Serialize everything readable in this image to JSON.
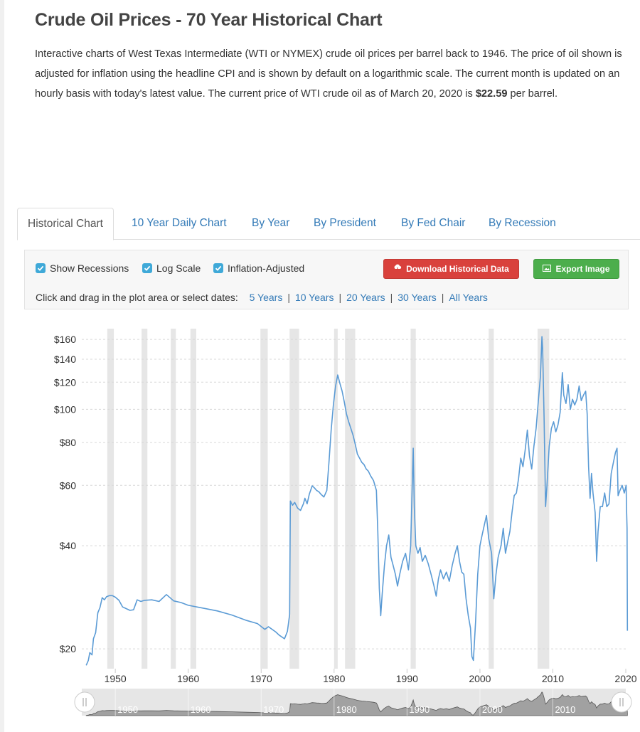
{
  "page": {
    "title": "Crude Oil Prices - 70 Year Historical Chart",
    "intro": "Interactive charts of West Texas Intermediate (WTI or NYMEX) crude oil prices per barrel back to 1946. The price of oil shown is adjusted for inflation using the headline CPI and is shown by default on a logarithmic scale. The current month is updated on an hourly basis with today's latest value. The current price of WTI crude oil as of March 20, 2020 is",
    "price": "$22.59",
    "price_suffix": " per barrel."
  },
  "tabs": [
    {
      "label": "Historical Chart",
      "active": true
    },
    {
      "label": "10 Year Daily Chart"
    },
    {
      "label": "By Year"
    },
    {
      "label": "By President"
    },
    {
      "label": "By Fed Chair"
    },
    {
      "label": "By Recession"
    }
  ],
  "controls": {
    "checkboxes": [
      {
        "label": "Show Recessions",
        "checked": true
      },
      {
        "label": "Log Scale",
        "checked": true
      },
      {
        "label": "Inflation-Adjusted",
        "checked": true
      }
    ],
    "download_label": "Download Historical Data",
    "export_label": "Export Image",
    "dates_prompt": "Click and drag in the plot area or select dates:",
    "date_ranges": [
      "5 Years",
      "10 Years",
      "20 Years",
      "30 Years",
      "All Years"
    ],
    "colors": {
      "download": "#d9413c",
      "export": "#4cae4c",
      "checkbox": "#3fa9d8"
    }
  },
  "chart_data": {
    "type": "line",
    "log_scale": true,
    "line_color": "#5b9bd5",
    "recession_color": "#e6e6e6",
    "x_range": [
      1945.4,
      2020.0
    ],
    "ylim": [
      17.5,
      172
    ],
    "x_ticks": [
      "1950",
      "1960",
      "1970",
      "1980",
      "1990",
      "2000",
      "2010",
      "2020"
    ],
    "y_ticks": [
      {
        "value": 20,
        "label": "$20"
      },
      {
        "value": 40,
        "label": "$40"
      },
      {
        "value": 60,
        "label": "$60"
      },
      {
        "value": 80,
        "label": "$80"
      },
      {
        "value": 100,
        "label": "$100"
      },
      {
        "value": 120,
        "label": "$120"
      },
      {
        "value": 140,
        "label": "$140"
      },
      {
        "value": 160,
        "label": "$160"
      }
    ],
    "recessions": [
      [
        1948.9,
        1949.8
      ],
      [
        1953.6,
        1954.4
      ],
      [
        1957.6,
        1958.3
      ],
      [
        1960.3,
        1961.1
      ],
      [
        1969.9,
        1970.9
      ],
      [
        1973.9,
        1975.2
      ],
      [
        1980.0,
        1980.5
      ],
      [
        1981.5,
        1982.9
      ],
      [
        1990.5,
        1991.2
      ],
      [
        2001.2,
        2001.9
      ],
      [
        2007.9,
        2009.5
      ]
    ],
    "series": [
      {
        "points": [
          [
            1946.0,
            17.9
          ],
          [
            1946.3,
            18.5
          ],
          [
            1946.5,
            19.5
          ],
          [
            1946.8,
            19.2
          ],
          [
            1947.0,
            21.4
          ],
          [
            1947.3,
            22.3
          ],
          [
            1947.6,
            25.5
          ],
          [
            1947.9,
            26.4
          ],
          [
            1948.2,
            28.2
          ],
          [
            1948.5,
            27.8
          ],
          [
            1948.8,
            28.4
          ],
          [
            1949.2,
            28.6
          ],
          [
            1949.6,
            28.6
          ],
          [
            1950.0,
            28.3
          ],
          [
            1950.5,
            27.7
          ],
          [
            1951.0,
            26.5
          ],
          [
            1951.5,
            26.2
          ],
          [
            1952.0,
            25.9
          ],
          [
            1952.5,
            26.0
          ],
          [
            1953.0,
            27.8
          ],
          [
            1953.5,
            27.5
          ],
          [
            1954.0,
            27.7
          ],
          [
            1955.0,
            27.8
          ],
          [
            1956.0,
            27.5
          ],
          [
            1957.0,
            28.8
          ],
          [
            1957.5,
            28.2
          ],
          [
            1958.0,
            27.6
          ],
          [
            1959.0,
            27.3
          ],
          [
            1960.0,
            26.8
          ],
          [
            1962.0,
            26.3
          ],
          [
            1964.0,
            25.8
          ],
          [
            1966.0,
            25.1
          ],
          [
            1968.0,
            24.2
          ],
          [
            1969.5,
            23.7
          ],
          [
            1970.5,
            22.8
          ],
          [
            1971.0,
            23.2
          ],
          [
            1972.0,
            22.4
          ],
          [
            1972.5,
            21.9
          ],
          [
            1973.2,
            21.4
          ],
          [
            1973.6,
            22.5
          ],
          [
            1973.9,
            25.2
          ],
          [
            1974.0,
            54.0
          ],
          [
            1974.3,
            52.5
          ],
          [
            1974.6,
            53.5
          ],
          [
            1975.0,
            51.5
          ],
          [
            1975.4,
            50.7
          ],
          [
            1975.8,
            53.0
          ],
          [
            1976.0,
            55.0
          ],
          [
            1976.3,
            53.0
          ],
          [
            1976.6,
            56.5
          ],
          [
            1977.0,
            59.8
          ],
          [
            1977.3,
            59.0
          ],
          [
            1977.6,
            58.0
          ],
          [
            1977.9,
            57.5
          ],
          [
            1978.2,
            56.5
          ],
          [
            1978.6,
            55.5
          ],
          [
            1979.0,
            58.0
          ],
          [
            1979.3,
            70.0
          ],
          [
            1979.6,
            87.0
          ],
          [
            1979.9,
            103.0
          ],
          [
            1980.2,
            117.0
          ],
          [
            1980.5,
            126.0
          ],
          [
            1980.8,
            119.0
          ],
          [
            1981.1,
            113.0
          ],
          [
            1981.4,
            105.0
          ],
          [
            1981.7,
            97.0
          ],
          [
            1982.0,
            92.0
          ],
          [
            1982.3,
            88.0
          ],
          [
            1982.6,
            84.0
          ],
          [
            1982.9,
            79.0
          ],
          [
            1983.2,
            74.0
          ],
          [
            1983.5,
            72.0
          ],
          [
            1983.8,
            70.0
          ],
          [
            1984.1,
            69.0
          ],
          [
            1984.4,
            67.0
          ],
          [
            1984.7,
            66.0
          ],
          [
            1985.0,
            64.0
          ],
          [
            1985.4,
            62.0
          ],
          [
            1985.8,
            58.0
          ],
          [
            1986.0,
            44.0
          ],
          [
            1986.2,
            30.0
          ],
          [
            1986.4,
            25.0
          ],
          [
            1986.6,
            29.0
          ],
          [
            1986.9,
            35.0
          ],
          [
            1987.2,
            40.0
          ],
          [
            1987.5,
            43.0
          ],
          [
            1987.8,
            37.0
          ],
          [
            1988.1,
            35.0
          ],
          [
            1988.4,
            33.0
          ],
          [
            1988.7,
            30.5
          ],
          [
            1989.0,
            33.0
          ],
          [
            1989.4,
            36.0
          ],
          [
            1989.8,
            38.0
          ],
          [
            1990.2,
            34.0
          ],
          [
            1990.5,
            40.0
          ],
          [
            1990.7,
            58.0
          ],
          [
            1990.85,
            77.0
          ],
          [
            1991.0,
            52.0
          ],
          [
            1991.2,
            40.0
          ],
          [
            1991.5,
            38.0
          ],
          [
            1991.8,
            39.5
          ],
          [
            1992.1,
            36.0
          ],
          [
            1992.5,
            37.5
          ],
          [
            1992.9,
            35.5
          ],
          [
            1993.3,
            33.0
          ],
          [
            1993.7,
            30.5
          ],
          [
            1994.0,
            28.5
          ],
          [
            1994.3,
            32.0
          ],
          [
            1994.6,
            34.0
          ],
          [
            1995.0,
            32.0
          ],
          [
            1995.4,
            33.5
          ],
          [
            1995.8,
            31.5
          ],
          [
            1996.2,
            35.0
          ],
          [
            1996.6,
            38.0
          ],
          [
            1996.9,
            40.0
          ],
          [
            1997.2,
            36.0
          ],
          [
            1997.5,
            33.5
          ],
          [
            1997.8,
            33.0
          ],
          [
            1998.1,
            28.0
          ],
          [
            1998.4,
            25.0
          ],
          [
            1998.7,
            23.0
          ],
          [
            1998.9,
            19.0
          ],
          [
            1999.1,
            18.5
          ],
          [
            1999.4,
            24.0
          ],
          [
            1999.7,
            33.0
          ],
          [
            2000.0,
            40.0
          ],
          [
            2000.3,
            43.0
          ],
          [
            2000.6,
            46.0
          ],
          [
            2000.9,
            49.0
          ],
          [
            2001.2,
            42.0
          ],
          [
            2001.6,
            38.0
          ],
          [
            2001.9,
            28.0
          ],
          [
            2002.2,
            33.0
          ],
          [
            2002.5,
            37.0
          ],
          [
            2002.9,
            40.0
          ],
          [
            2003.2,
            45.0
          ],
          [
            2003.5,
            38.0
          ],
          [
            2003.8,
            41.0
          ],
          [
            2004.1,
            44.0
          ],
          [
            2004.4,
            50.0
          ],
          [
            2004.7,
            56.0
          ],
          [
            2005.0,
            57.0
          ],
          [
            2005.3,
            63.0
          ],
          [
            2005.6,
            72.0
          ],
          [
            2005.9,
            68.0
          ],
          [
            2006.2,
            76.0
          ],
          [
            2006.5,
            87.0
          ],
          [
            2006.8,
            73.0
          ],
          [
            2007.1,
            67.0
          ],
          [
            2007.4,
            78.0
          ],
          [
            2007.7,
            88.0
          ],
          [
            2008.0,
            105.0
          ],
          [
            2008.3,
            125.0
          ],
          [
            2008.5,
            163.0
          ],
          [
            2008.6,
            150.0
          ],
          [
            2008.8,
            95.0
          ],
          [
            2009.0,
            52.0
          ],
          [
            2009.2,
            60.0
          ],
          [
            2009.5,
            78.0
          ],
          [
            2009.8,
            88.0
          ],
          [
            2010.1,
            92.0
          ],
          [
            2010.4,
            86.0
          ],
          [
            2010.7,
            90.0
          ],
          [
            2011.0,
            98.0
          ],
          [
            2011.3,
            128.0
          ],
          [
            2011.5,
            110.0
          ],
          [
            2011.8,
            104.0
          ],
          [
            2012.1,
            118.0
          ],
          [
            2012.4,
            100.0
          ],
          [
            2012.7,
            107.0
          ],
          [
            2013.0,
            103.0
          ],
          [
            2013.3,
            107.0
          ],
          [
            2013.6,
            117.0
          ],
          [
            2013.9,
            106.0
          ],
          [
            2014.2,
            110.0
          ],
          [
            2014.5,
            113.0
          ],
          [
            2014.7,
            97.0
          ],
          [
            2014.9,
            68.0
          ],
          [
            2015.1,
            55.0
          ],
          [
            2015.3,
            65.0
          ],
          [
            2015.5,
            57.0
          ],
          [
            2015.8,
            50.0
          ],
          [
            2016.0,
            36.0
          ],
          [
            2016.2,
            44.0
          ],
          [
            2016.5,
            52.0
          ],
          [
            2016.8,
            52.0
          ],
          [
            2017.1,
            57.0
          ],
          [
            2017.4,
            52.0
          ],
          [
            2017.7,
            53.0
          ],
          [
            2018.0,
            65.0
          ],
          [
            2018.3,
            70.0
          ],
          [
            2018.6,
            75.0
          ],
          [
            2018.8,
            77.0
          ],
          [
            2018.95,
            56.0
          ],
          [
            2019.2,
            58.0
          ],
          [
            2019.5,
            60.0
          ],
          [
            2019.8,
            57.0
          ],
          [
            2020.05,
            60.0
          ],
          [
            2020.1,
            52.0
          ],
          [
            2020.18,
            45.0
          ],
          [
            2020.22,
            22.59
          ]
        ]
      }
    ],
    "navigator": {
      "x_labels": [
        "1950",
        "1960",
        "1970",
        "1980",
        "1990",
        "2000",
        "2010"
      ]
    }
  }
}
